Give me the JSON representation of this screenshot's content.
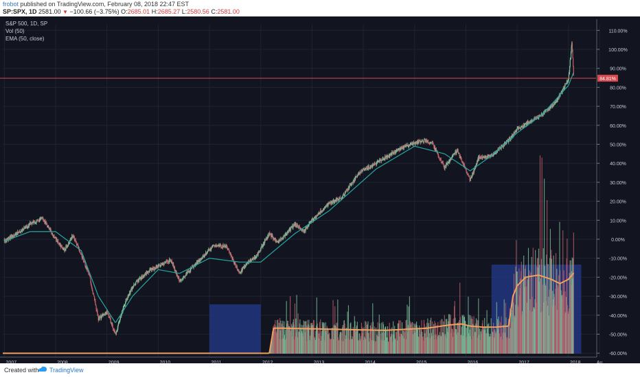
{
  "header": {
    "author": "frobot",
    "published_text": " published on TradingView.com, February 08, 2018 22:47 EST",
    "symbol": "SP:SPX, 1D",
    "price": "2581.00",
    "change": "−100.66 (−3.75%)",
    "o_label": "O:",
    "o_value": "2685.01",
    "h_label": "H:",
    "h_value": "2685.27",
    "l_label": "L:",
    "l_value": "2580.56",
    "c_label": "C:",
    "c_value": "2581.00"
  },
  "legend": {
    "line1": "S&P 500, 1D, SP",
    "line2": "Vol (50)",
    "line3": "EMA (50, close)"
  },
  "price_tag": "84.81%",
  "footer": {
    "created_with": "Created with",
    "brand": "TradingView"
  },
  "colors": {
    "background": "#121520",
    "ema": "#26a8a0",
    "up": "#7fbf9c",
    "down": "#c2606a",
    "price_line": "#d84a4f",
    "volume_ma": "#f0a060",
    "highlight_box": "#223580"
  },
  "chart_data": [
    {
      "type": "line",
      "title": "S&P 500, 1D, SP",
      "series": [
        {
          "name": "S&P 500, 1D, SP",
          "x": [
            "2007-01",
            "2007-04",
            "2007-07",
            "2007-10",
            "2008-01",
            "2008-03",
            "2008-05",
            "2008-07",
            "2008-09",
            "2008-11",
            "2009-01",
            "2009-03",
            "2009-05",
            "2009-07",
            "2009-10",
            "2010-01",
            "2010-04",
            "2010-06",
            "2010-09",
            "2010-12",
            "2011-02",
            "2011-05",
            "2011-08",
            "2011-10",
            "2011-12",
            "2012-03",
            "2012-05",
            "2012-09",
            "2012-11",
            "2013-01",
            "2013-05",
            "2013-08",
            "2013-12",
            "2014-04",
            "2014-09",
            "2014-12",
            "2015-03",
            "2015-05",
            "2015-08",
            "2015-11",
            "2016-02",
            "2016-04",
            "2016-07",
            "2016-11",
            "2017-01",
            "2017-04",
            "2017-07",
            "2017-10",
            "2018-01",
            "2018-01-26",
            "2018-02-08"
          ],
          "y": [
            -1,
            3,
            8,
            11,
            0,
            -6,
            2,
            -8,
            -20,
            -42,
            -38,
            -50,
            -35,
            -25,
            -18,
            -14,
            -11,
            -22,
            -15,
            -8,
            -3,
            -4,
            -18,
            -12,
            -9,
            3,
            -2,
            8,
            4,
            10,
            19,
            22,
            35,
            40,
            47,
            50,
            52,
            51,
            38,
            47,
            31,
            43,
            44,
            52,
            58,
            62,
            66,
            72,
            84,
            104,
            84.81
          ]
        },
        {
          "name": "EMA (50, close)",
          "x": [
            "2007-01",
            "2007-07",
            "2008-01",
            "2008-07",
            "2008-11",
            "2009-03",
            "2009-07",
            "2010-01",
            "2010-06",
            "2011-01",
            "2011-08",
            "2012-01",
            "2012-09",
            "2013-05",
            "2014-04",
            "2015-01",
            "2015-08",
            "2016-02",
            "2016-07",
            "2017-01",
            "2017-07",
            "2018-01",
            "2018-02-08"
          ],
          "y": [
            -1,
            4,
            4,
            -6,
            -30,
            -44,
            -30,
            -16,
            -18,
            -10,
            -12,
            -12,
            3,
            15,
            37,
            49,
            45,
            36,
            44,
            56,
            66,
            81,
            88
          ]
        }
      ],
      "x_ticks": [
        "2007",
        "2008",
        "2009",
        "2010",
        "2011",
        "2012",
        "2013",
        "2014",
        "2015",
        "2016",
        "2017",
        "2018",
        "Au"
      ],
      "y_ticks": [
        "110.00%",
        "100.00%",
        "90.00%",
        "80.00%",
        "70.00%",
        "60.00%",
        "50.00%",
        "40.00%",
        "30.00%",
        "20.00%",
        "10.00%",
        "0.00%",
        "-10.00%",
        "-20.00%",
        "-30.00%",
        "-40.00%",
        "-50.00%",
        "-60.00%"
      ],
      "ylim": [
        -61,
        113
      ],
      "xlim": [
        "2006-12-20",
        "2018-07-15"
      ],
      "grid": true,
      "last_value": 84.81
    },
    {
      "type": "bar",
      "title": "Vol (50)",
      "volume_ma": {
        "name": "Vol (50)",
        "x": [
          "2007-01",
          "2012-03",
          "2012-04",
          "2012-06",
          "2013-06",
          "2014-06",
          "2015-04",
          "2015-09",
          "2015-12",
          "2016-02",
          "2016-05",
          "2016-08",
          "2016-11",
          "2016-12",
          "2017-01",
          "2017-03",
          "2017-06",
          "2017-09",
          "2017-11",
          "2018-01",
          "2018-02-08"
        ],
        "y": [
          0.2,
          0.2,
          12,
          12,
          11.5,
          11,
          12,
          13.5,
          14,
          13,
          12.5,
          12.5,
          13,
          27,
          32,
          36,
          37,
          35,
          33,
          35,
          38
        ]
      },
      "highlight_regions": [
        [
          "2011-01",
          "2012-01"
        ],
        [
          "2016-07",
          "2018-04"
        ]
      ]
    }
  ]
}
